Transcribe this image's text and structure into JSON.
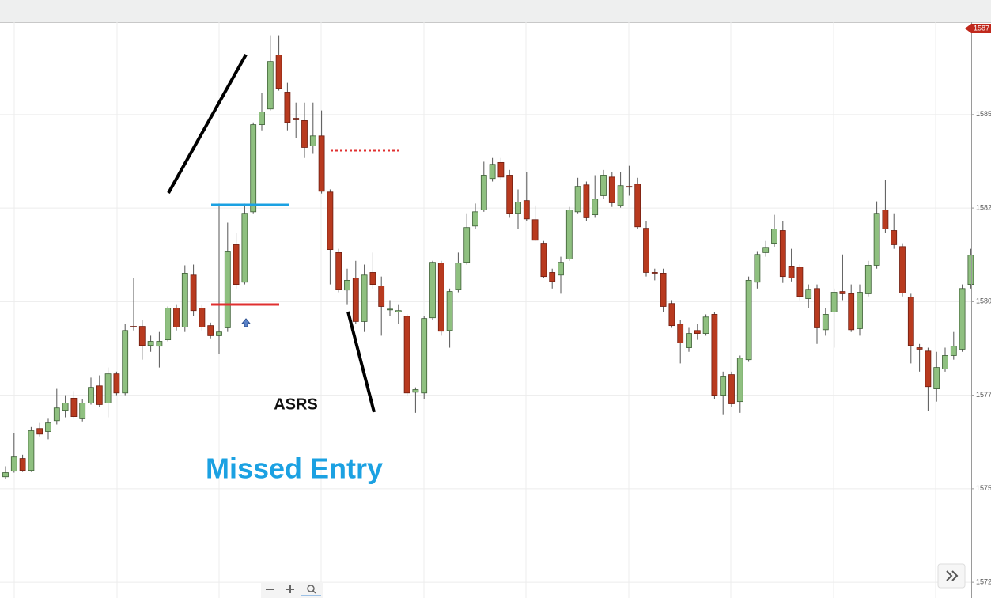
{
  "chart_data": {
    "type": "candlestick",
    "annotations": [
      "ASRS",
      "Missed Entry"
    ],
    "ylim": [
      1572.08,
      1587.47
    ],
    "yticks": [
      {
        "value": 1572.5,
        "label": "1572"
      },
      1575,
      {
        "value": 1577.5,
        "label": "1577"
      },
      1580,
      {
        "value": 1582.5,
        "label": "1582"
      },
      1585
    ],
    "price_tag": {
      "value": 1587.3,
      "label": "1587"
    },
    "grid": true,
    "up_color": "#8fc080",
    "down_color": "#b83a1f",
    "open": [
      1575.32,
      1575.47,
      1575.81,
      1575.49,
      1576.61,
      1576.53,
      1576.82,
      1577.1,
      1577.42,
      1576.87,
      1577.29,
      1577.75,
      1577.29,
      1578.07,
      1577.56,
      1579.34,
      1579.34,
      1578.83,
      1578.81,
      1578.98,
      1579.83,
      1579.32,
      1580.71,
      1579.83,
      1579.36,
      1579.09,
      1579.3,
      1581.52,
      1580.52,
      1582.4,
      1584.73,
      1585.15,
      1586.59,
      1585.6,
      1584.9,
      1584.84,
      1584.16,
      1584.43,
      1582.93,
      1581.31,
      1580.31,
      1580.63,
      1579.47,
      1580.78,
      1580.42,
      1579.78,
      1579.72,
      1579.61,
      1577.58,
      1577.56,
      1579.57,
      1581.03,
      1579.23,
      1580.33,
      1581.05,
      1582.02,
      1582.45,
      1583.29,
      1583.72,
      1583.38,
      1582.36,
      1582.7,
      1582.19,
      1581.56,
      1580.78,
      1580.71,
      1581.14,
      1582.4,
      1583.12,
      1582.32,
      1582.83,
      1583.33,
      1582.57,
      1583.08,
      1583.14,
      1581.96,
      1580.78,
      1580.76,
      1579.95,
      1579.4,
      1578.77,
      1579.23,
      1579.15,
      1579.66,
      1577.5,
      1578.05,
      1577.33,
      1578.45,
      1580.52,
      1581.31,
      1581.56,
      1581.9,
      1580.95,
      1580.92,
      1580.08,
      1580.35,
      1579.25,
      1579.72,
      1580.27,
      1580.21,
      1579.28,
      1580.21,
      1580.97,
      1582.45,
      1581.9,
      1581.47,
      1580.12,
      1578.77,
      1578.68,
      1577.67,
      1578.2,
      1578.56,
      1578.73,
      1580.46
    ],
    "high": [
      1575.6,
      1576.49,
      1575.91,
      1576.65,
      1576.76,
      1576.87,
      1577.67,
      1577.5,
      1577.61,
      1577.39,
      1577.97,
      1578.03,
      1578.24,
      1578.13,
      1579.4,
      1580.63,
      1579.51,
      1579.09,
      1579.19,
      1579.87,
      1579.93,
      1580.97,
      1580.99,
      1579.93,
      1579.44,
      1582.62,
      1582.11,
      1581.83,
      1582.62,
      1584.79,
      1585.58,
      1587.12,
      1587.12,
      1585.85,
      1585.32,
      1585.32,
      1585.32,
      1585.11,
      1583.0,
      1581.41,
      1580.88,
      1581.09,
      1580.99,
      1581.31,
      1580.67,
      1580.04,
      1579.93,
      1579.66,
      1577.71,
      1579.61,
      1581.09,
      1581.09,
      1580.35,
      1581.31,
      1582.36,
      1582.62,
      1583.74,
      1583.84,
      1583.84,
      1583.52,
      1583.0,
      1583.46,
      1582.57,
      1581.62,
      1580.88,
      1581.2,
      1582.53,
      1583.31,
      1583.21,
      1583.38,
      1583.52,
      1583.46,
      1583.46,
      1583.63,
      1583.31,
      1582.15,
      1580.88,
      1580.88,
      1580.04,
      1579.51,
      1579.3,
      1579.4,
      1579.66,
      1579.72,
      1578.13,
      1578.13,
      1578.56,
      1580.67,
      1581.35,
      1581.62,
      1582.32,
      1582.15,
      1581.41,
      1580.99,
      1580.46,
      1580.46,
      1579.83,
      1580.35,
      1581.26,
      1580.46,
      1580.46,
      1581.09,
      1582.68,
      1583.25,
      1582.36,
      1581.56,
      1580.21,
      1578.87,
      1578.77,
      1578.66,
      1578.77,
      1579.19,
      1580.46,
      1581.41
    ],
    "low": [
      1575.26,
      1575.43,
      1575.45,
      1575.45,
      1576.4,
      1576.32,
      1576.72,
      1576.91,
      1576.87,
      1576.8,
      1577.25,
      1577.18,
      1576.91,
      1577.5,
      1577.5,
      1579.23,
      1578.45,
      1578.66,
      1578.24,
      1578.94,
      1579.23,
      1579.19,
      1579.61,
      1579.23,
      1579.02,
      1578.6,
      1579.19,
      1580.35,
      1580.46,
      1582.36,
      1584.58,
      1585.11,
      1585.64,
      1584.58,
      1584.37,
      1583.84,
      1583.95,
      1582.89,
      1580.46,
      1580.25,
      1579.93,
      1579.4,
      1579.19,
      1580.35,
      1579.09,
      1579.61,
      1579.4,
      1577.5,
      1577.03,
      1577.39,
      1579.51,
      1579.09,
      1578.77,
      1580.25,
      1580.99,
      1581.94,
      1582.4,
      1583.21,
      1583.25,
      1582.26,
      1581.94,
      1582.15,
      1581.62,
      1580.63,
      1580.35,
      1580.21,
      1581.09,
      1582.36,
      1582.15,
      1582.26,
      1582.74,
      1582.53,
      1582.51,
      1582.83,
      1581.94,
      1580.67,
      1580.57,
      1579.72,
      1579.3,
      1578.35,
      1578.66,
      1578.98,
      1579.09,
      1577.39,
      1576.97,
      1577.18,
      1577.03,
      1578.39,
      1580.35,
      1581.2,
      1581.47,
      1580.5,
      1580.54,
      1580.04,
      1579.83,
      1578.87,
      1579.09,
      1578.77,
      1580.04,
      1579.19,
      1579.09,
      1580.14,
      1580.88,
      1581.83,
      1581.41,
      1580.14,
      1578.35,
      1578.13,
      1577.08,
      1577.33,
      1578.13,
      1578.45,
      1578.66,
      1580.35
    ],
    "close": [
      1575.43,
      1575.85,
      1575.49,
      1576.55,
      1576.46,
      1576.76,
      1577.16,
      1577.29,
      1576.93,
      1577.29,
      1577.71,
      1577.25,
      1578.07,
      1577.56,
      1579.23,
      1579.32,
      1578.83,
      1578.94,
      1578.94,
      1579.83,
      1579.32,
      1580.76,
      1579.76,
      1579.32,
      1579.09,
      1579.19,
      1581.35,
      1580.46,
      1582.36,
      1584.73,
      1585.07,
      1586.42,
      1585.7,
      1584.79,
      1584.86,
      1584.12,
      1584.43,
      1582.95,
      1581.39,
      1580.33,
      1580.57,
      1579.47,
      1580.71,
      1580.46,
      1579.87,
      1579.8,
      1579.76,
      1577.56,
      1577.65,
      1579.55,
      1581.05,
      1579.21,
      1580.27,
      1581.03,
      1581.98,
      1582.4,
      1583.38,
      1583.67,
      1583.33,
      1582.36,
      1582.66,
      1582.21,
      1581.64,
      1580.67,
      1580.54,
      1581.05,
      1582.45,
      1583.08,
      1582.26,
      1582.74,
      1583.38,
      1582.64,
      1583.1,
      1583.06,
      1582.0,
      1580.78,
      1580.76,
      1579.87,
      1579.36,
      1578.9,
      1579.15,
      1579.15,
      1579.59,
      1577.5,
      1578.01,
      1577.27,
      1578.49,
      1580.57,
      1581.26,
      1581.45,
      1581.94,
      1580.67,
      1580.63,
      1580.14,
      1580.33,
      1579.3,
      1579.66,
      1580.25,
      1580.21,
      1579.25,
      1580.25,
      1580.97,
      1582.36,
      1581.94,
      1581.52,
      1580.23,
      1578.83,
      1578.73,
      1577.73,
      1578.24,
      1578.56,
      1578.81,
      1580.35,
      1581.24
    ]
  }
}
